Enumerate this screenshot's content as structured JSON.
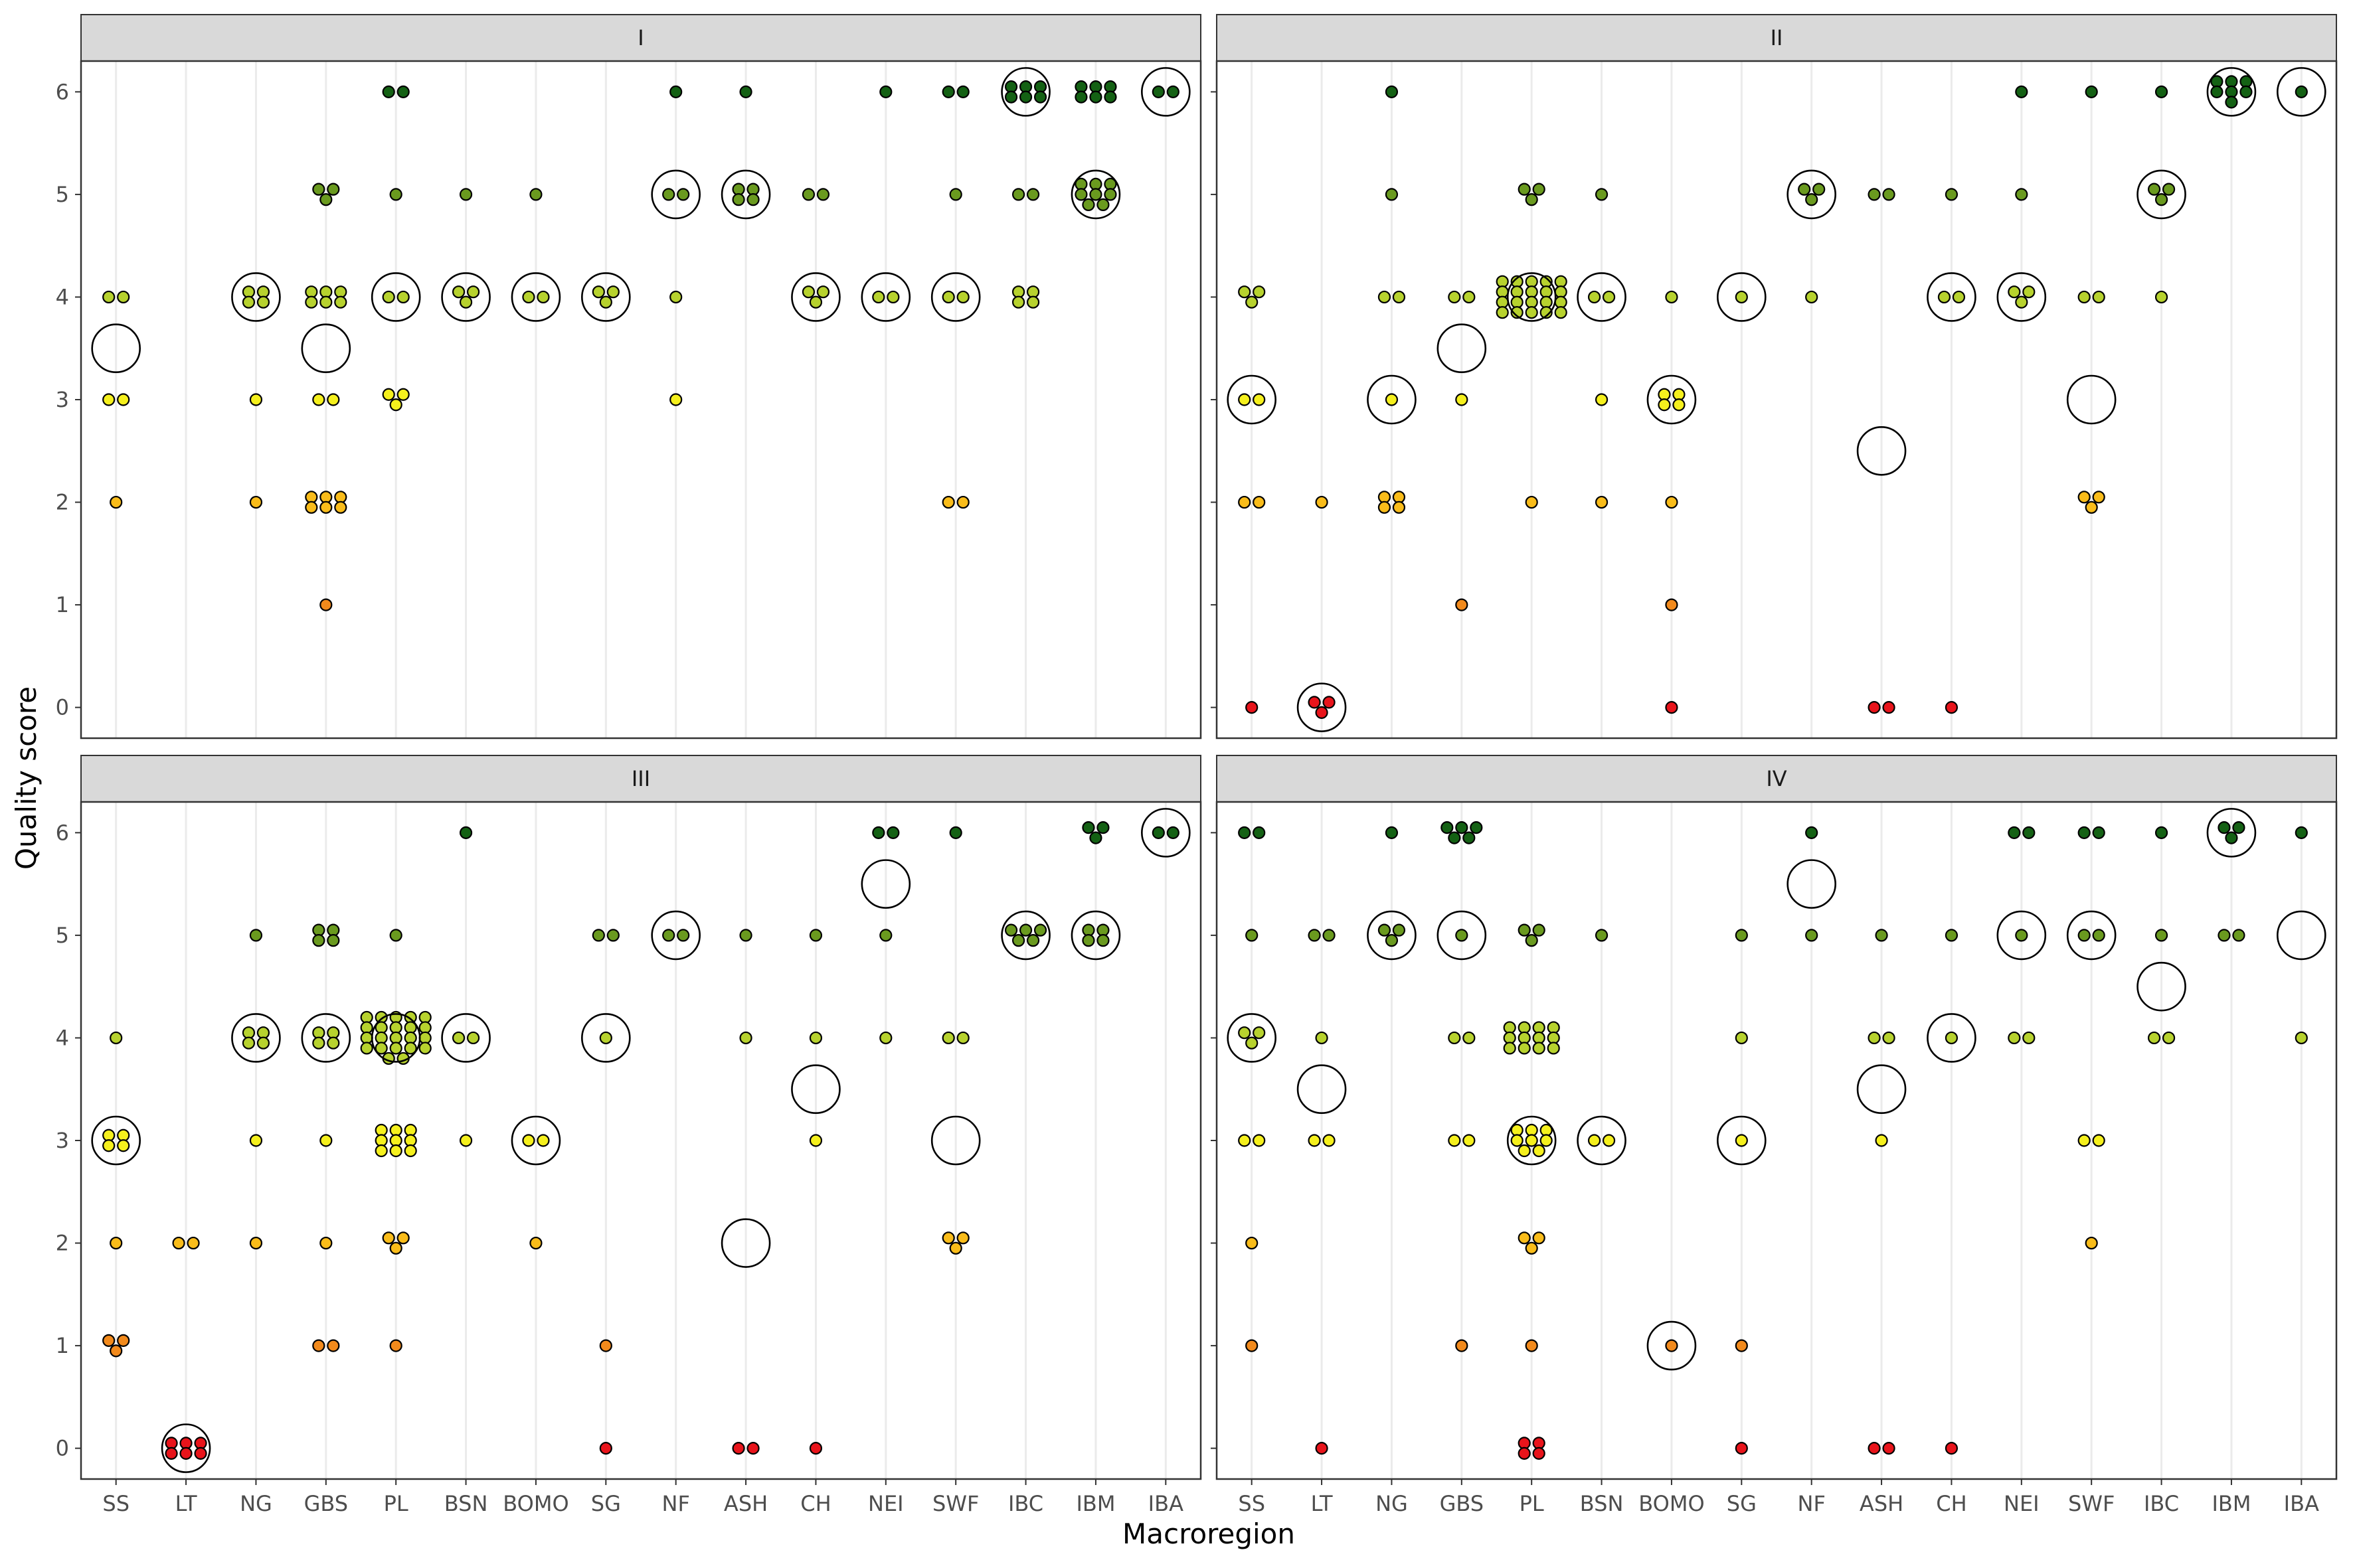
{
  "chart_data": {
    "type": "scatter",
    "xlabel": "Macroregion",
    "ylabel": "Quality score",
    "categories": [
      "SS",
      "LT",
      "NG",
      "GBS",
      "PL",
      "BSN",
      "BOMO",
      "SG",
      "NF",
      "ASH",
      "CH",
      "NEI",
      "SWF",
      "IBC",
      "IBM",
      "IBA"
    ],
    "y_ticks": [
      0,
      1,
      2,
      3,
      4,
      5,
      6
    ],
    "ylim": [
      -0.3,
      6.3
    ],
    "grid": "vertical major lines only",
    "score_colors": {
      "0": "#e8141b",
      "1": "#f28a1c",
      "2": "#f9bc1a",
      "3": "#f5f01d",
      "4": "#b7d22e",
      "5": "#6a9a1f",
      "6": "#146114"
    },
    "panels": [
      {
        "name": "I",
        "points": {
          "SS": [
            [
              4,
              2
            ],
            [
              3,
              2
            ],
            [
              2,
              1
            ]
          ],
          "LT": [],
          "NG": [
            [
              4,
              4
            ],
            [
              3,
              1
            ],
            [
              2,
              1
            ]
          ],
          "GBS": [
            [
              5,
              3
            ],
            [
              4,
              6
            ],
            [
              3,
              2
            ],
            [
              2,
              6
            ],
            [
              1,
              1
            ]
          ],
          "PL": [
            [
              6,
              2
            ],
            [
              5,
              1
            ],
            [
              4,
              2
            ],
            [
              3,
              3
            ]
          ],
          "BSN": [
            [
              5,
              1
            ],
            [
              4,
              3
            ]
          ],
          "BOMO": [
            [
              5,
              1
            ],
            [
              4,
              2
            ]
          ],
          "SG": [
            [
              4,
              3
            ]
          ],
          "NF": [
            [
              6,
              1
            ],
            [
              5,
              2
            ],
            [
              4,
              1
            ],
            [
              3,
              1
            ]
          ],
          "ASH": [
            [
              6,
              1
            ],
            [
              5,
              4
            ]
          ],
          "CH": [
            [
              5,
              2
            ],
            [
              4,
              3
            ]
          ],
          "NEI": [
            [
              6,
              1
            ],
            [
              4,
              2
            ]
          ],
          "SWF": [
            [
              6,
              2
            ],
            [
              5,
              1
            ],
            [
              4,
              2
            ],
            [
              2,
              2
            ]
          ],
          "IBC": [
            [
              6,
              6
            ],
            [
              5,
              2
            ],
            [
              4,
              4
            ]
          ],
          "IBM": [
            [
              6,
              6
            ],
            [
              5,
              8
            ]
          ],
          "IBA": [
            [
              6,
              2
            ]
          ]
        },
        "means": {
          "SS": 3.5,
          "NG": 4,
          "GBS": 3.5,
          "PL": 4,
          "BSN": 4,
          "BOMO": 4,
          "SG": 4,
          "NF": 5,
          "ASH": 5,
          "CH": 4,
          "NEI": 4,
          "SWF": 4,
          "IBC": 6,
          "IBM": 5,
          "IBA": 6
        }
      },
      {
        "name": "II",
        "points": {
          "SS": [
            [
              4,
              3
            ],
            [
              3,
              2
            ],
            [
              2,
              2
            ],
            [
              0,
              1
            ]
          ],
          "LT": [
            [
              2,
              1
            ],
            [
              0,
              3
            ]
          ],
          "NG": [
            [
              6,
              1
            ],
            [
              5,
              1
            ],
            [
              4,
              2
            ],
            [
              3,
              1
            ],
            [
              2,
              4
            ]
          ],
          "GBS": [
            [
              4,
              2
            ],
            [
              3,
              1
            ],
            [
              1,
              1
            ]
          ],
          "PL": [
            [
              5,
              3
            ],
            [
              4,
              20
            ],
            [
              2,
              1
            ]
          ],
          "BSN": [
            [
              5,
              1
            ],
            [
              4,
              2
            ],
            [
              3,
              1
            ],
            [
              2,
              1
            ]
          ],
          "BOMO": [
            [
              4,
              1
            ],
            [
              3,
              4
            ],
            [
              2,
              1
            ],
            [
              1,
              1
            ],
            [
              0,
              1
            ]
          ],
          "SG": [
            [
              4,
              1
            ]
          ],
          "NF": [
            [
              5,
              3
            ],
            [
              4,
              1
            ]
          ],
          "ASH": [
            [
              5,
              2
            ],
            [
              0,
              2
            ]
          ],
          "CH": [
            [
              5,
              1
            ],
            [
              4,
              2
            ],
            [
              0,
              1
            ]
          ],
          "NEI": [
            [
              6,
              1
            ],
            [
              5,
              1
            ],
            [
              4,
              3
            ]
          ],
          "SWF": [
            [
              6,
              1
            ],
            [
              4,
              2
            ],
            [
              2,
              3
            ]
          ],
          "IBC": [
            [
              6,
              1
            ],
            [
              5,
              3
            ],
            [
              4,
              1
            ]
          ],
          "IBM": [
            [
              6,
              7
            ]
          ],
          "IBA": [
            [
              6,
              1
            ]
          ]
        },
        "means": {
          "SS": 3,
          "LT": 0,
          "NG": 3,
          "GBS": 3.5,
          "PL": 4,
          "BSN": 4,
          "BOMO": 3,
          "SG": 4,
          "NF": 5,
          "ASH": 2.5,
          "CH": 4,
          "NEI": 4,
          "SWF": 3,
          "IBC": 5,
          "IBM": 6,
          "IBA": 6
        }
      },
      {
        "name": "III",
        "points": {
          "SS": [
            [
              4,
              1
            ],
            [
              3,
              4
            ],
            [
              2,
              1
            ],
            [
              1,
              3
            ]
          ],
          "LT": [
            [
              2,
              2
            ],
            [
              0,
              6
            ]
          ],
          "NG": [
            [
              5,
              1
            ],
            [
              4,
              4
            ],
            [
              3,
              1
            ],
            [
              2,
              1
            ]
          ],
          "GBS": [
            [
              5,
              4
            ],
            [
              4,
              4
            ],
            [
              3,
              1
            ],
            [
              2,
              1
            ],
            [
              1,
              2
            ]
          ],
          "PL": [
            [
              5,
              1
            ],
            [
              4,
              22
            ],
            [
              3,
              9
            ],
            [
              2,
              3
            ],
            [
              1,
              1
            ]
          ],
          "BSN": [
            [
              6,
              1
            ],
            [
              4,
              2
            ],
            [
              3,
              1
            ]
          ],
          "BOMO": [
            [
              3,
              2
            ],
            [
              2,
              1
            ]
          ],
          "SG": [
            [
              5,
              2
            ],
            [
              4,
              1
            ],
            [
              1,
              1
            ],
            [
              0,
              1
            ]
          ],
          "NF": [
            [
              5,
              2
            ]
          ],
          "ASH": [
            [
              5,
              1
            ],
            [
              4,
              1
            ],
            [
              0,
              2
            ]
          ],
          "CH": [
            [
              5,
              1
            ],
            [
              4,
              1
            ],
            [
              3,
              1
            ],
            [
              0,
              1
            ]
          ],
          "NEI": [
            [
              6,
              2
            ],
            [
              5,
              1
            ],
            [
              4,
              1
            ]
          ],
          "SWF": [
            [
              6,
              1
            ],
            [
              4,
              2
            ],
            [
              2,
              3
            ]
          ],
          "IBC": [
            [
              5,
              5
            ]
          ],
          "IBM": [
            [
              6,
              3
            ],
            [
              5,
              4
            ]
          ],
          "IBA": [
            [
              6,
              2
            ]
          ]
        },
        "means": {
          "SS": 3,
          "LT": 0,
          "NG": 4,
          "GBS": 4,
          "PL": 4,
          "BSN": 4,
          "BOMO": 3,
          "SG": 4,
          "NF": 5,
          "ASH": 2,
          "CH": 3.5,
          "NEI": 5.5,
          "SWF": 3,
          "IBC": 5,
          "IBM": 5,
          "IBA": 6
        }
      },
      {
        "name": "IV",
        "points": {
          "SS": [
            [
              6,
              2
            ],
            [
              5,
              1
            ],
            [
              4,
              3
            ],
            [
              3,
              2
            ],
            [
              2,
              1
            ],
            [
              1,
              1
            ]
          ],
          "LT": [
            [
              5,
              2
            ],
            [
              4,
              1
            ],
            [
              3,
              2
            ],
            [
              0,
              1
            ]
          ],
          "NG": [
            [
              6,
              1
            ],
            [
              5,
              3
            ]
          ],
          "GBS": [
            [
              6,
              5
            ],
            [
              5,
              1
            ],
            [
              4,
              2
            ],
            [
              3,
              2
            ],
            [
              1,
              1
            ]
          ],
          "PL": [
            [
              5,
              3
            ],
            [
              4,
              12
            ],
            [
              3,
              8
            ],
            [
              2,
              3
            ],
            [
              1,
              1
            ],
            [
              0,
              4
            ]
          ],
          "BSN": [
            [
              5,
              1
            ],
            [
              3,
              2
            ]
          ],
          "BOMO": [
            [
              1,
              1
            ]
          ],
          "SG": [
            [
              5,
              1
            ],
            [
              4,
              1
            ],
            [
              3,
              1
            ],
            [
              1,
              1
            ],
            [
              0,
              1
            ]
          ],
          "NF": [
            [
              6,
              1
            ],
            [
              5,
              1
            ]
          ],
          "ASH": [
            [
              5,
              1
            ],
            [
              4,
              2
            ],
            [
              3,
              1
            ],
            [
              0,
              2
            ]
          ],
          "CH": [
            [
              5,
              1
            ],
            [
              4,
              1
            ],
            [
              0,
              1
            ]
          ],
          "NEI": [
            [
              6,
              2
            ],
            [
              5,
              1
            ],
            [
              4,
              2
            ]
          ],
          "SWF": [
            [
              6,
              2
            ],
            [
              5,
              2
            ],
            [
              3,
              2
            ],
            [
              2,
              1
            ]
          ],
          "IBC": [
            [
              6,
              1
            ],
            [
              5,
              1
            ],
            [
              4,
              2
            ]
          ],
          "IBM": [
            [
              6,
              3
            ],
            [
              5,
              2
            ]
          ],
          "IBA": [
            [
              6,
              1
            ],
            [
              4,
              1
            ]
          ]
        },
        "means": {
          "SS": 4,
          "LT": 3.5,
          "NG": 5,
          "GBS": 5,
          "PL": 3,
          "BSN": 3,
          "BOMO": 1,
          "SG": 3,
          "NF": 5.5,
          "ASH": 3.5,
          "CH": 4,
          "NEI": 5,
          "SWF": 5,
          "IBC": 4.5,
          "IBM": 6,
          "IBA": 5
        }
      }
    ]
  }
}
